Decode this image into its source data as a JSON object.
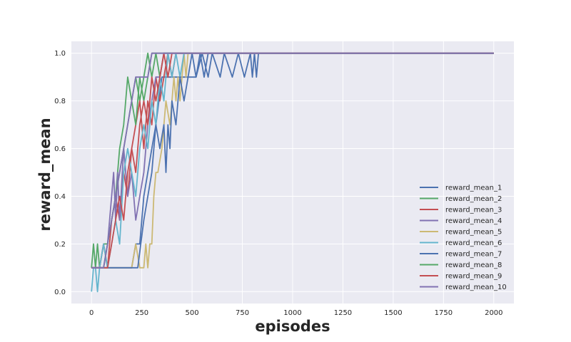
{
  "chart_data": {
    "type": "line",
    "title": "",
    "xlabel": "episodes",
    "ylabel": "reward_mean",
    "xlim": [
      -100,
      2100
    ],
    "ylim": [
      -0.05,
      1.05
    ],
    "xticks": [
      0,
      250,
      500,
      750,
      1000,
      1250,
      1500,
      1750,
      2000
    ],
    "yticks": [
      0.0,
      0.2,
      0.4,
      0.6,
      0.8,
      1.0
    ],
    "xtick_labels": [
      "0",
      "250",
      "500",
      "750",
      "1000",
      "1250",
      "1500",
      "1750",
      "2000"
    ],
    "ytick_labels": [
      "0.0",
      "0.2",
      "0.4",
      "0.6",
      "0.8",
      "1.0"
    ],
    "grid": true,
    "legend_position": "lower-right",
    "series": [
      {
        "name": "reward_mean_1",
        "color": "#4c72b0",
        "x": [
          0,
          10,
          20,
          30,
          40,
          60,
          100,
          150,
          200,
          220,
          230,
          240,
          260,
          300,
          320,
          350,
          400,
          420,
          430,
          440,
          460,
          480,
          500,
          520,
          550,
          580,
          600,
          640,
          660,
          700,
          730,
          760,
          790,
          800,
          810,
          820,
          830,
          2000
        ],
        "y": [
          0.1,
          0.1,
          0.1,
          0.1,
          0.1,
          0.1,
          0.1,
          0.1,
          0.1,
          0.2,
          0.2,
          0.2,
          0.4,
          0.6,
          0.7,
          0.9,
          0.9,
          0.9,
          0.9,
          0.9,
          0.9,
          0.9,
          0.9,
          0.9,
          1.0,
          0.9,
          1.0,
          0.9,
          1.0,
          0.9,
          1.0,
          0.9,
          1.0,
          0.9,
          1.0,
          0.9,
          1.0,
          1.0
        ]
      },
      {
        "name": "reward_mean_2",
        "color": "#55a868",
        "x": [
          0,
          10,
          20,
          30,
          40,
          60,
          80,
          100,
          120,
          140,
          160,
          180,
          200,
          220,
          240,
          260,
          280,
          300,
          320,
          340,
          360,
          380,
          400,
          2000
        ],
        "y": [
          0.1,
          0.2,
          0.1,
          0.2,
          0.1,
          0.2,
          0.2,
          0.3,
          0.4,
          0.6,
          0.7,
          0.9,
          0.8,
          0.9,
          0.8,
          0.9,
          1.0,
          0.9,
          1.0,
          0.9,
          1.0,
          1.0,
          1.0,
          1.0
        ]
      },
      {
        "name": "reward_mean_3",
        "color": "#c44e52",
        "x": [
          0,
          20,
          40,
          60,
          80,
          100,
          120,
          140,
          160,
          180,
          200,
          220,
          240,
          260,
          280,
          300,
          320,
          340,
          360,
          380,
          400,
          420,
          440,
          460,
          2000
        ],
        "y": [
          0.1,
          0.1,
          0.1,
          0.2,
          0.1,
          0.3,
          0.4,
          0.3,
          0.5,
          0.4,
          0.6,
          0.7,
          0.8,
          0.6,
          0.8,
          0.7,
          0.9,
          0.8,
          0.9,
          1.0,
          0.9,
          1.0,
          1.0,
          1.0,
          1.0
        ]
      },
      {
        "name": "reward_mean_4",
        "color": "#8172b2",
        "x": [
          0,
          20,
          40,
          60,
          80,
          100,
          110,
          120,
          130,
          140,
          160,
          180,
          200,
          220,
          240,
          260,
          280,
          300,
          320,
          340,
          360,
          380,
          2000
        ],
        "y": [
          0.1,
          0.1,
          0.1,
          0.1,
          0.2,
          0.4,
          0.5,
          0.3,
          0.5,
          0.3,
          0.6,
          0.4,
          0.5,
          0.3,
          0.4,
          0.5,
          0.7,
          0.8,
          0.9,
          0.9,
          1.0,
          1.0,
          1.0
        ]
      },
      {
        "name": "reward_mean_5",
        "color": "#ccb974",
        "x": [
          0,
          40,
          80,
          120,
          160,
          200,
          220,
          240,
          260,
          270,
          280,
          290,
          300,
          310,
          320,
          330,
          350,
          370,
          390,
          410,
          420,
          430,
          440,
          450,
          460,
          470,
          480,
          490,
          2000
        ],
        "y": [
          0.1,
          0.1,
          0.1,
          0.1,
          0.1,
          0.1,
          0.2,
          0.1,
          0.1,
          0.2,
          0.1,
          0.2,
          0.2,
          0.4,
          0.5,
          0.5,
          0.6,
          0.8,
          0.7,
          0.9,
          0.8,
          0.9,
          0.8,
          0.9,
          1.0,
          0.9,
          1.0,
          1.0,
          1.0
        ]
      },
      {
        "name": "reward_mean_6",
        "color": "#64b5cd",
        "x": [
          0,
          10,
          20,
          30,
          40,
          60,
          80,
          100,
          120,
          140,
          160,
          180,
          200,
          220,
          240,
          260,
          280,
          300,
          320,
          340,
          360,
          380,
          400,
          420,
          440,
          460,
          2000
        ],
        "y": [
          0.0,
          0.1,
          0.1,
          0.0,
          0.1,
          0.2,
          0.1,
          0.2,
          0.3,
          0.2,
          0.5,
          0.6,
          0.5,
          0.4,
          0.6,
          0.7,
          0.6,
          0.8,
          0.7,
          0.9,
          0.8,
          1.0,
          0.9,
          1.0,
          0.9,
          1.0,
          1.0
        ]
      },
      {
        "name": "reward_mean_7",
        "color": "#4c72b0",
        "x": [
          0,
          40,
          80,
          120,
          160,
          200,
          230,
          260,
          280,
          300,
          320,
          340,
          360,
          370,
          380,
          390,
          400,
          420,
          440,
          460,
          480,
          500,
          520,
          540,
          560,
          580,
          2000
        ],
        "y": [
          0.1,
          0.1,
          0.1,
          0.1,
          0.1,
          0.1,
          0.1,
          0.3,
          0.4,
          0.5,
          0.7,
          0.6,
          0.7,
          0.5,
          0.7,
          0.6,
          0.8,
          0.7,
          0.9,
          0.8,
          0.9,
          1.0,
          0.9,
          1.0,
          0.9,
          1.0,
          1.0
        ]
      },
      {
        "name": "reward_mean_8",
        "color": "#55a868",
        "x": [
          0,
          20,
          40,
          60,
          80,
          100,
          120,
          140,
          160,
          180,
          200,
          220,
          240,
          260,
          280,
          300,
          320,
          340,
          360,
          380,
          2000
        ],
        "y": [
          0.1,
          0.1,
          0.1,
          0.1,
          0.2,
          0.3,
          0.4,
          0.5,
          0.6,
          0.7,
          0.8,
          0.7,
          0.9,
          0.8,
          0.9,
          1.0,
          1.0,
          1.0,
          1.0,
          1.0,
          1.0
        ]
      },
      {
        "name": "reward_mean_9",
        "color": "#c44e52",
        "x": [
          0,
          20,
          40,
          60,
          80,
          100,
          120,
          140,
          160,
          180,
          200,
          220,
          240,
          260,
          280,
          300,
          320,
          340,
          360,
          380,
          400,
          420,
          2000
        ],
        "y": [
          0.1,
          0.1,
          0.1,
          0.1,
          0.1,
          0.2,
          0.3,
          0.4,
          0.3,
          0.5,
          0.6,
          0.5,
          0.7,
          0.8,
          0.7,
          0.9,
          0.8,
          0.9,
          1.0,
          0.9,
          1.0,
          1.0,
          1.0
        ]
      },
      {
        "name": "reward_mean_10",
        "color": "#8172b2",
        "x": [
          0,
          20,
          40,
          60,
          80,
          100,
          120,
          140,
          160,
          180,
          200,
          220,
          240,
          260,
          280,
          300,
          320,
          340,
          360,
          2000
        ],
        "y": [
          0.1,
          0.1,
          0.1,
          0.1,
          0.2,
          0.3,
          0.4,
          0.5,
          0.6,
          0.7,
          0.8,
          0.9,
          0.9,
          0.9,
          0.9,
          1.0,
          1.0,
          1.0,
          1.0,
          1.0
        ]
      }
    ]
  }
}
